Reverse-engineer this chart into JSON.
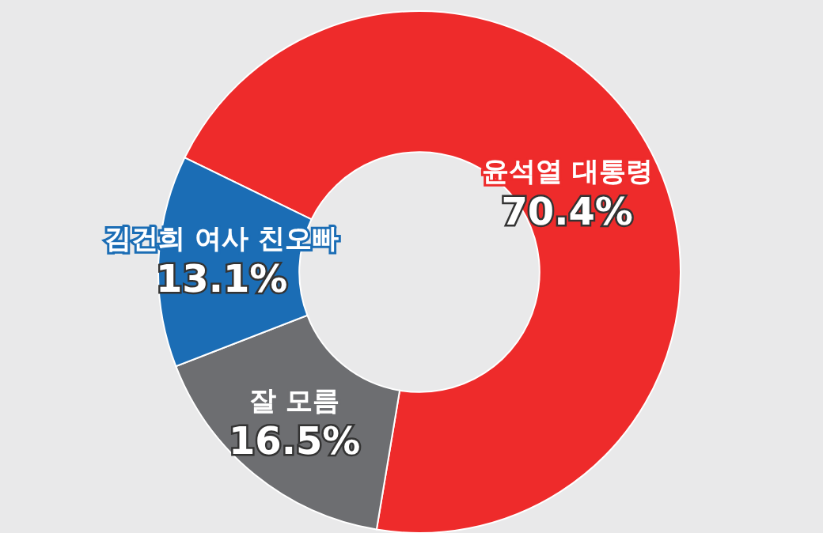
{
  "chart_data": {
    "type": "donut",
    "categories": [
      "윤석열 대통령",
      "잘 모름",
      "김건희 여사 친오빠"
    ],
    "values": [
      70.4,
      16.5,
      13.1
    ],
    "colors": [
      "#ee2b2b",
      "#6d6e71",
      "#1b6db5"
    ],
    "value_labels": [
      "70.4%",
      "16.5%",
      "13.1%"
    ]
  }
}
